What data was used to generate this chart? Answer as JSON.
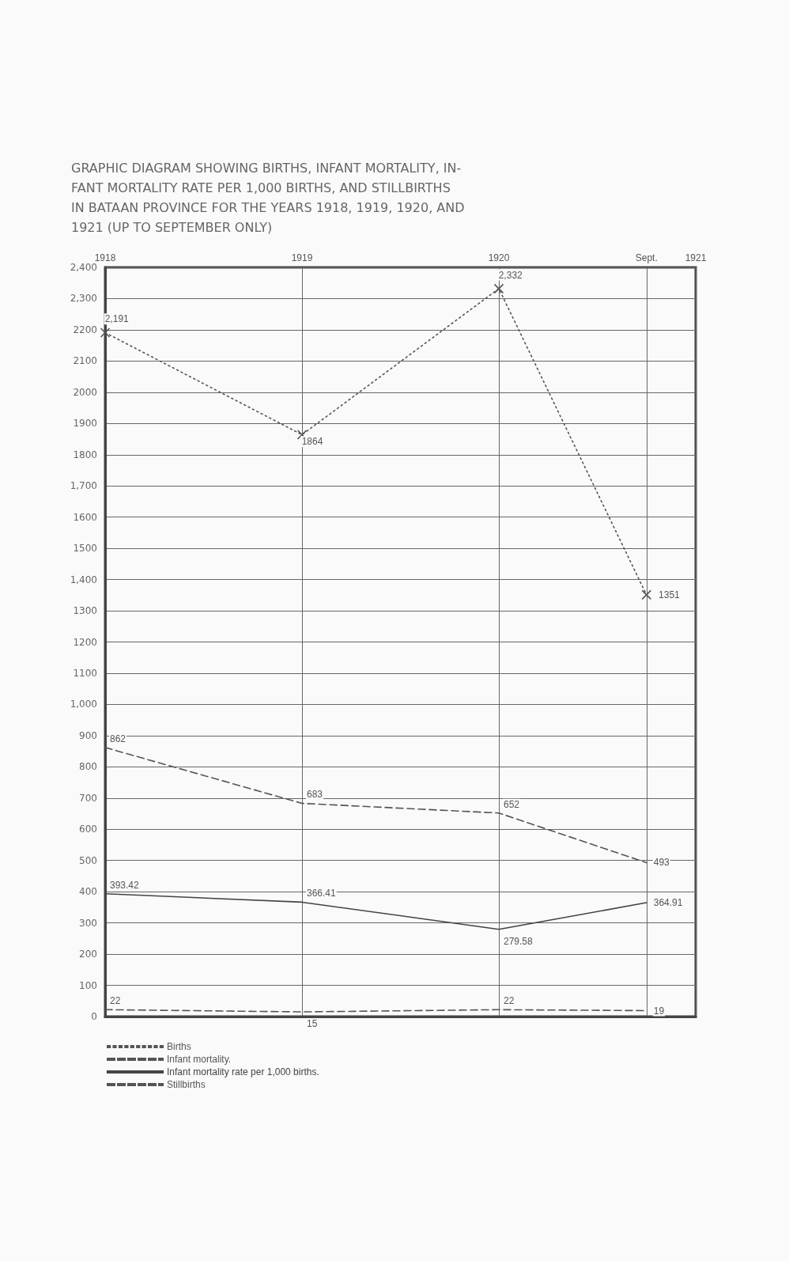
{
  "chart_data": {
    "type": "line",
    "title": "GRAPHIC DIAGRAM SHOWING BIRTHS, INFANT MORTALITY, IN-\nFANT MORTALITY RATE PER 1,000 BIRTHS, AND STILLBIRTHS\nIN BATAAN PROVINCE FOR THE YEARS 1918, 1919, 1920, AND\n1921 (UP TO SEPTEMBER ONLY)",
    "x": [
      1918,
      1919,
      1920,
      1920.75
    ],
    "xlim": [
      1918,
      1921
    ],
    "xticks": [
      1918,
      1919,
      1920,
      {
        "value": 1920.75,
        "label": "Sept."
      },
      1921
    ],
    "ylim": [
      0,
      2400
    ],
    "yticks": [
      0,
      100,
      200,
      300,
      400,
      500,
      600,
      700,
      800,
      900,
      {
        "value": 1000,
        "label": "1,000"
      },
      1100,
      1200,
      1300,
      {
        "value": 1400,
        "label": "1,400"
      },
      1500,
      1600,
      {
        "value": 1700,
        "label": "1,700"
      },
      1800,
      1900,
      2000,
      2100,
      2200,
      {
        "value": 2300,
        "label": "2,300"
      },
      {
        "value": 2400,
        "label": "2,400"
      }
    ],
    "grid": true,
    "legend": "bottom left",
    "series": [
      {
        "name": "Births",
        "color": "#555555",
        "values": [
          2191,
          1864,
          2332,
          1351
        ],
        "value_labels": [
          "2,191",
          "1864",
          "2,332",
          "1351"
        ],
        "marker": "cross",
        "line_style": "dotted"
      },
      {
        "name": "Infant mortality.",
        "color": "#555555",
        "values": [
          862,
          683,
          652,
          493
        ],
        "value_labels": [
          "862",
          "683",
          "652",
          "493"
        ],
        "line_style": "dashed"
      },
      {
        "name": "Infant mortality rate per 1,000 births.",
        "color": "#444444",
        "values": [
          393.42,
          366.41,
          279.58,
          364.91
        ],
        "value_labels": [
          "393.42",
          "366.41",
          "279.58",
          "364.91"
        ],
        "line_style": "solid"
      },
      {
        "name": "Stillbirths",
        "color": "#555555",
        "values": [
          22,
          15,
          22,
          19
        ],
        "value_labels": [
          "22",
          "15",
          "22",
          "19"
        ],
        "line_style": "dashed"
      }
    ]
  }
}
